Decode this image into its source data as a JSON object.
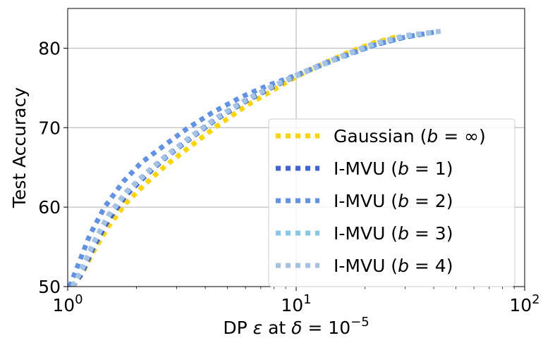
{
  "chart_data": {
    "type": "line",
    "xscale": "log",
    "xlim": [
      1,
      100
    ],
    "ylim": [
      50,
      85
    ],
    "grid": true,
    "legend_position": "lower-right",
    "xlabel": {
      "pre": "DP ",
      "eps": "ε",
      "mid": " at ",
      "delta": "δ",
      "eq": " = 10",
      "exp": "−5"
    },
    "ylabel": "Test Accuracy",
    "x_ticks": [
      {
        "value": 1,
        "base": "10",
        "exp": "0"
      },
      {
        "value": 10,
        "base": "10",
        "exp": "1"
      },
      {
        "value": 100,
        "base": "10",
        "exp": "2"
      }
    ],
    "y_ticks": [
      {
        "value": 50,
        "label": "50"
      },
      {
        "value": 60,
        "label": "60"
      },
      {
        "value": 70,
        "label": "70"
      },
      {
        "value": 80,
        "label": "80"
      }
    ],
    "series": [
      {
        "name": "Gaussian",
        "b": "∞",
        "color": "#FFD500",
        "points": [
          [
            1.05,
            50.0
          ],
          [
            1.15,
            51.5
          ],
          [
            1.3,
            54.5
          ],
          [
            1.5,
            57.5
          ],
          [
            1.8,
            60.5
          ],
          [
            2.2,
            63.0
          ],
          [
            2.7,
            65.3
          ],
          [
            3.5,
            67.8
          ],
          [
            4.5,
            70.2
          ],
          [
            6,
            72.7
          ],
          [
            8,
            74.8
          ],
          [
            10,
            76.4
          ],
          [
            13,
            78.0
          ],
          [
            17,
            79.5
          ],
          [
            22,
            80.7
          ],
          [
            28,
            81.5
          ]
        ]
      },
      {
        "name": "I-MVU",
        "b": "1",
        "color": "#3F63DB",
        "points": [
          [
            1.05,
            50.0
          ],
          [
            1.15,
            51.6
          ],
          [
            1.3,
            55.0
          ],
          [
            1.5,
            58.3
          ],
          [
            1.8,
            61.5
          ],
          [
            2.2,
            64.0
          ],
          [
            2.7,
            66.3
          ],
          [
            3.5,
            68.8
          ],
          [
            4.5,
            71.1
          ],
          [
            6,
            73.3
          ],
          [
            8,
            75.2
          ],
          [
            10,
            76.5
          ],
          [
            13,
            78.0
          ],
          [
            17,
            79.3
          ],
          [
            22,
            80.4
          ],
          [
            30,
            81.4
          ],
          [
            38,
            81.9
          ]
        ]
      },
      {
        "name": "I-MVU",
        "b": "2",
        "color": "#6093E8",
        "points": [
          [
            1.02,
            50.0
          ],
          [
            1.12,
            53.0
          ],
          [
            1.25,
            56.5
          ],
          [
            1.45,
            60.0
          ],
          [
            1.75,
            63.2
          ],
          [
            2.1,
            65.6
          ],
          [
            2.6,
            67.6
          ],
          [
            3.3,
            69.8
          ],
          [
            4.3,
            71.9
          ],
          [
            5.7,
            73.8
          ],
          [
            7.5,
            75.3
          ],
          [
            10,
            76.6
          ],
          [
            13,
            77.9
          ],
          [
            17,
            79.2
          ],
          [
            22,
            80.4
          ],
          [
            30,
            81.4
          ],
          [
            40,
            82.0
          ]
        ]
      },
      {
        "name": "I-MVU",
        "b": "3",
        "color": "#86C8EA",
        "points": [
          [
            1.05,
            50.0
          ],
          [
            1.15,
            52.0
          ],
          [
            1.3,
            55.5
          ],
          [
            1.5,
            58.8
          ],
          [
            1.8,
            61.8
          ],
          [
            2.2,
            64.2
          ],
          [
            2.7,
            66.4
          ],
          [
            3.5,
            68.9
          ],
          [
            4.5,
            71.2
          ],
          [
            6,
            73.4
          ],
          [
            8,
            75.3
          ],
          [
            10,
            76.5
          ],
          [
            13,
            77.9
          ],
          [
            17,
            79.3
          ],
          [
            22,
            80.5
          ],
          [
            30,
            81.5
          ],
          [
            42,
            82.1
          ]
        ]
      },
      {
        "name": "I-MVU",
        "b": "4",
        "color": "#A6C2E2",
        "points": [
          [
            1.05,
            50.0
          ],
          [
            1.15,
            52.1
          ],
          [
            1.3,
            55.6
          ],
          [
            1.5,
            58.9
          ],
          [
            1.8,
            61.9
          ],
          [
            2.2,
            64.3
          ],
          [
            2.7,
            66.5
          ],
          [
            3.5,
            69.0
          ],
          [
            4.5,
            71.3
          ],
          [
            6,
            73.5
          ],
          [
            8,
            75.3
          ],
          [
            10,
            76.6
          ],
          [
            13,
            78.0
          ],
          [
            17,
            79.4
          ],
          [
            22,
            80.6
          ],
          [
            30,
            81.6
          ],
          [
            45,
            82.2
          ]
        ]
      }
    ]
  }
}
